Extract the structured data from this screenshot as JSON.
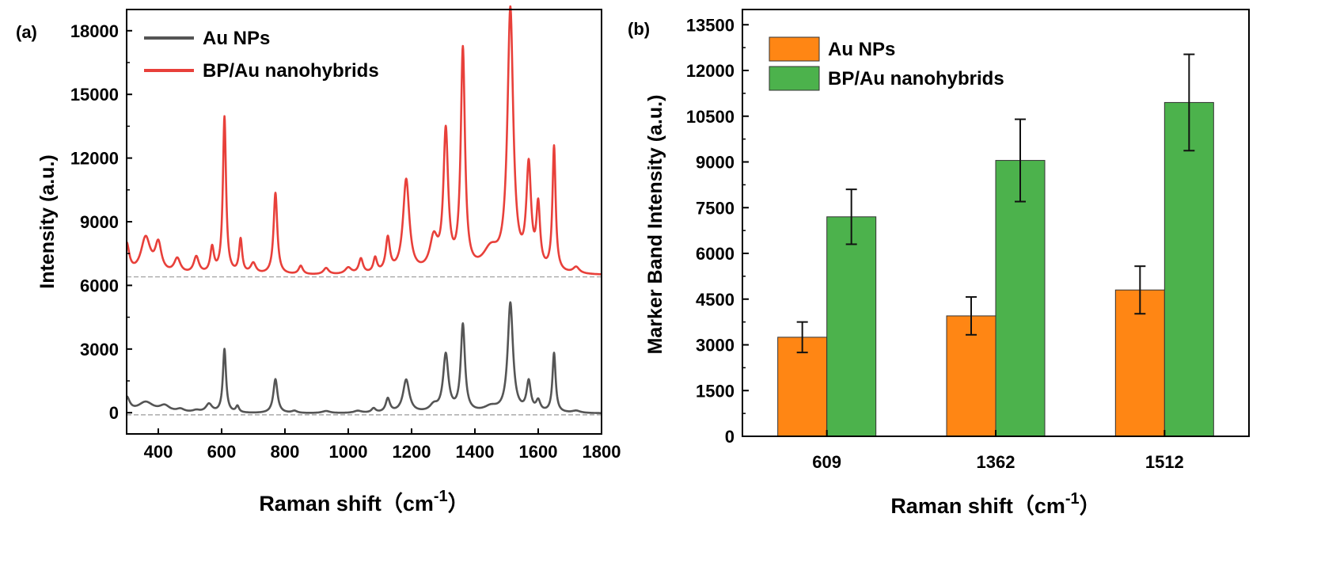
{
  "chart_data": [
    {
      "panel": "(a)",
      "type": "line",
      "xlabel": "Raman shift",
      "xunit": "（cm",
      "xunit_sup": "-1",
      "xunit_close": "）",
      "ylabel": "Intensity (a.u.)",
      "xlim": [
        300,
        1800
      ],
      "ylim": [
        -1000,
        19000
      ],
      "xticks": [
        400,
        600,
        800,
        1000,
        1200,
        1400,
        1600,
        1800
      ],
      "yticks": [
        0,
        3000,
        6000,
        9000,
        12000,
        15000,
        18000
      ],
      "legend_position": "top-left",
      "colors": {
        "Au NPs": "#555555",
        "BP/Au nanohybrids": "#e8403a",
        "baseline": "#9a9a9a"
      },
      "series": [
        {
          "name": "Au NPs",
          "baseline": -100,
          "peaks": [
            [
              300,
              700,
              12
            ],
            [
              360,
              500,
              30
            ],
            [
              420,
              300,
              20
            ],
            [
              470,
              150,
              15
            ],
            [
              520,
              100,
              15
            ],
            [
              560,
              400,
              12
            ],
            [
              609,
              3000,
              6
            ],
            [
              650,
              300,
              6
            ],
            [
              770,
              1600,
              8
            ],
            [
              830,
              100,
              10
            ],
            [
              930,
              100,
              15
            ],
            [
              1030,
              100,
              15
            ],
            [
              1080,
              200,
              8
            ],
            [
              1125,
              650,
              8
            ],
            [
              1183,
              1550,
              12
            ],
            [
              1270,
              300,
              15
            ],
            [
              1308,
              2700,
              10
            ],
            [
              1362,
              4100,
              8
            ],
            [
              1450,
              250,
              25
            ],
            [
              1512,
              5150,
              10
            ],
            [
              1570,
              1400,
              8
            ],
            [
              1600,
              500,
              8
            ],
            [
              1650,
              2800,
              6
            ],
            [
              1720,
              100,
              15
            ]
          ]
        },
        {
          "name": "BP/Au nanohybrids",
          "baseline": 6400,
          "peaks": [
            [
              300,
              1400,
              10
            ],
            [
              360,
              1700,
              18
            ],
            [
              400,
              1350,
              12
            ],
            [
              460,
              700,
              12
            ],
            [
              520,
              800,
              10
            ],
            [
              570,
              1200,
              7
            ],
            [
              609,
              7400,
              6
            ],
            [
              660,
              1600,
              6
            ],
            [
              700,
              500,
              10
            ],
            [
              770,
              3850,
              7
            ],
            [
              850,
              400,
              8
            ],
            [
              930,
              300,
              10
            ],
            [
              1000,
              300,
              12
            ],
            [
              1040,
              700,
              8
            ],
            [
              1085,
              700,
              7
            ],
            [
              1125,
              1600,
              8
            ],
            [
              1183,
              4400,
              12
            ],
            [
              1270,
              1500,
              15
            ],
            [
              1308,
              6500,
              9
            ],
            [
              1362,
              10400,
              8
            ],
            [
              1450,
              1000,
              30
            ],
            [
              1512,
              12300,
              11
            ],
            [
              1570,
              4800,
              9
            ],
            [
              1600,
              2900,
              7
            ],
            [
              1650,
              5900,
              6
            ],
            [
              1720,
              300,
              12
            ]
          ]
        }
      ]
    },
    {
      "panel": "(b)",
      "type": "bar",
      "xlabel": "Raman shift",
      "xunit": "（cm",
      "xunit_sup": "-1",
      "xunit_close": "）",
      "ylabel": "Marker Band Intensity (a.u.)",
      "ylim": [
        0,
        14000
      ],
      "yticks": [
        0,
        1500,
        3000,
        4500,
        6000,
        7500,
        9000,
        10500,
        12000,
        13500
      ],
      "categories": [
        "609",
        "1362",
        "1512"
      ],
      "legend_position": "top-left",
      "series": [
        {
          "name": "Au NPs",
          "color": "#ff8614",
          "values": [
            3250,
            3950,
            4800
          ],
          "errors": [
            500,
            620,
            780
          ]
        },
        {
          "name": "BP/Au nanohybrids",
          "color": "#4cb24c",
          "values": [
            7200,
            9050,
            10950
          ],
          "errors": [
            900,
            1350,
            1580
          ]
        }
      ]
    }
  ]
}
